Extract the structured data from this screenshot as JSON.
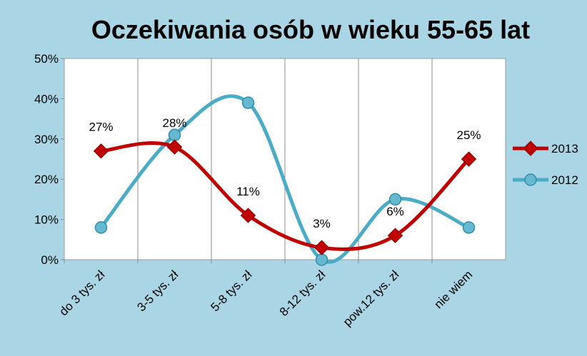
{
  "chart_data": {
    "type": "line",
    "title": "Oczekiwania osób w wieku 55-65 lat",
    "categories": [
      "do 3 tys. zł",
      "3-5 tys. zł",
      "5-8 tys. zł",
      "8-12 tys. zł",
      "pow.12 tys. zł",
      "nie wiem"
    ],
    "yticks": [
      "0%",
      "10%",
      "20%",
      "30%",
      "40%",
      "50%"
    ],
    "ylim": [
      0,
      50
    ],
    "grid": "vertical",
    "legend_position": "right",
    "series": [
      {
        "name": "2013",
        "color": "#c00000",
        "marker": "diamond",
        "values": [
          27,
          28,
          11,
          3,
          6,
          25
        ],
        "labels": [
          "27%",
          "28%",
          "11%",
          "3%",
          "6%",
          "25%"
        ]
      },
      {
        "name": "2012",
        "color": "#4aacc6",
        "marker": "circle",
        "values": [
          8,
          31,
          39,
          0,
          15,
          8
        ]
      }
    ]
  }
}
